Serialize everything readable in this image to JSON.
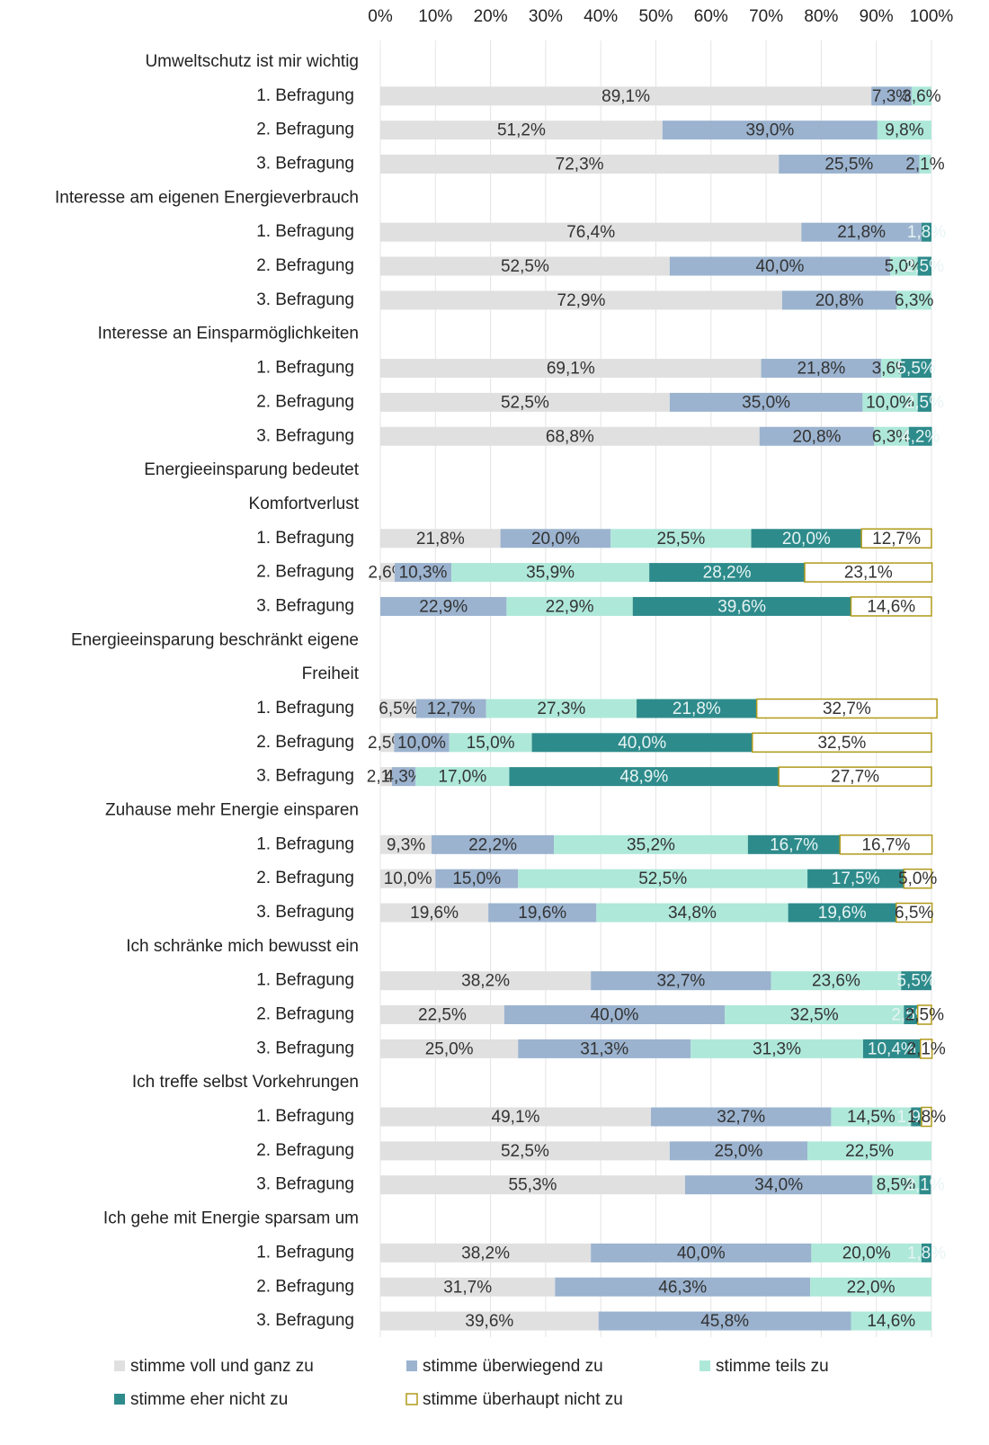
{
  "chart_data": {
    "type": "stacked_barh",
    "categories": [
      "Umweltschutz ist mir wichtig",
      "1. Befragung",
      "2. Befragung",
      "3. Befragung",
      "Interesse am eigenen Energieverbrauch",
      "1. Befragung",
      "2. Befragung",
      "3. Befragung",
      "Interesse an Einsparmöglichkeiten",
      "1. Befragung",
      "2. Befragung",
      "3. Befragung",
      "Energieeinsparung bedeutet",
      "Komfortverlust",
      "1. Befragung",
      "2. Befragung",
      "3. Befragung",
      "Energieeinsparung beschränkt eigene",
      "Freiheit",
      "1. Befragung",
      "2. Befragung",
      "3. Befragung",
      "Zuhause mehr Energie einsparen",
      "1. Befragung",
      "2. Befragung",
      "3. Befragung",
      "Ich schränke mich bewusst ein",
      "1. Befragung",
      "2. Befragung",
      "3. Befragung",
      "Ich treffe selbst Vorkehrungen",
      "1. Befragung",
      "2. Befragung",
      "3. Befragung",
      "Ich gehe mit Energie sparsam um",
      "1. Befragung",
      "2. Befragung",
      "3. Befragung"
    ],
    "series": [
      {
        "name": "stimme voll und ganz zu",
        "color": "#e0e0e0",
        "label_color": "#333333",
        "values": [
          null,
          89.1,
          51.2,
          72.3,
          null,
          76.4,
          52.5,
          72.9,
          null,
          69.1,
          52.5,
          68.8,
          null,
          null,
          21.8,
          2.6,
          null,
          null,
          null,
          6.5,
          2.5,
          2.1,
          null,
          9.3,
          10.0,
          19.6,
          null,
          38.2,
          22.5,
          25.0,
          null,
          49.1,
          52.5,
          55.3,
          null,
          38.2,
          31.7,
          39.6
        ],
        "value_labels": [
          null,
          "89,1%",
          "51,2%",
          "72,3%",
          null,
          "76,4%",
          "52,5%",
          "72,9%",
          null,
          "69,1%",
          "52,5%",
          "68,8%",
          null,
          null,
          "21,8%",
          "2,6%",
          null,
          null,
          null,
          "6,5%",
          "2,5%",
          "2,1%",
          null,
          "9,3%",
          "10,0%",
          "19,6%",
          null,
          "38,2%",
          "22,5%",
          "25,0%",
          null,
          "49,1%",
          "52,5%",
          "55,3%",
          null,
          "38,2%",
          "31,7%",
          "39,6%"
        ]
      },
      {
        "name": "stimme überwiegend zu",
        "color": "#9bb3cf",
        "label_color": "#333333",
        "values": [
          null,
          7.3,
          39.0,
          25.5,
          null,
          21.8,
          40.0,
          20.8,
          null,
          21.8,
          35.0,
          20.8,
          null,
          null,
          20.0,
          10.3,
          22.9,
          null,
          null,
          12.7,
          10.0,
          4.3,
          null,
          22.2,
          15.0,
          19.6,
          null,
          32.7,
          40.0,
          31.3,
          null,
          32.7,
          25.0,
          34.0,
          null,
          40.0,
          46.3,
          45.8
        ],
        "value_labels": [
          null,
          "7,3%",
          "39,0%",
          "25,5%",
          null,
          "21,8%",
          "40,0%",
          "20,8%",
          null,
          "21,8%",
          "35,0%",
          "20,8%",
          null,
          null,
          "20,0%",
          "10,3%",
          "22,9%",
          null,
          null,
          "12,7%",
          "10,0%",
          "4,3%",
          null,
          "22,2%",
          "15,0%",
          "19,6%",
          null,
          "32,7%",
          "40,0%",
          "31,3%",
          null,
          "32,7%",
          "25,0%",
          "34,0%",
          null,
          "40,0%",
          "46,3%",
          "45,8%"
        ]
      },
      {
        "name": "stimme teils zu",
        "color": "#aee8d9",
        "label_color": "#333333",
        "values": [
          null,
          3.6,
          9.8,
          2.1,
          null,
          null,
          5.0,
          6.3,
          null,
          3.6,
          10.0,
          6.3,
          null,
          null,
          25.5,
          35.9,
          22.9,
          null,
          null,
          27.3,
          15.0,
          17.0,
          null,
          35.2,
          52.5,
          34.8,
          null,
          23.6,
          32.5,
          31.3,
          null,
          14.5,
          22.5,
          8.5,
          null,
          20.0,
          22.0,
          14.6
        ],
        "value_labels": [
          null,
          "3,6%",
          "9,8%",
          "2,1%",
          null,
          null,
          "5,0%",
          "6,3%",
          null,
          "3,6%",
          "10,0%",
          "6,3%",
          null,
          null,
          "25,5%",
          "35,9%",
          "22,9%",
          null,
          null,
          "27,3%",
          "15,0%",
          "17,0%",
          null,
          "35,2%",
          "52,5%",
          "34,8%",
          null,
          "23,6%",
          "32,5%",
          "31,3%",
          null,
          "14,5%",
          "22,5%",
          "8,5%",
          null,
          "20,0%",
          "22,0%",
          "14,6%"
        ]
      },
      {
        "name": "stimme eher nicht zu",
        "color": "#2e8b8b",
        "label_color": "#e8f4f4",
        "values": [
          null,
          null,
          null,
          null,
          null,
          1.8,
          2.5,
          null,
          null,
          5.5,
          2.5,
          4.2,
          null,
          null,
          20.0,
          28.2,
          39.6,
          null,
          null,
          21.8,
          40.0,
          48.9,
          null,
          16.7,
          17.5,
          19.6,
          null,
          5.5,
          2.5,
          10.4,
          null,
          1.9,
          null,
          2.1,
          null,
          1.8,
          null,
          null
        ],
        "value_labels": [
          null,
          null,
          null,
          null,
          null,
          "1,8%",
          "2,5%",
          null,
          null,
          "5,5%",
          "2,5%",
          "4,2%",
          null,
          null,
          "20,0%",
          "28,2%",
          "39,6%",
          null,
          null,
          "21,8%",
          "40,0%",
          "48,9%",
          null,
          "16,7%",
          "17,5%",
          "19,6%",
          null,
          "5,5%",
          "2,5%",
          "10,4%",
          null,
          "1,9%",
          null,
          "2,1%",
          null,
          "1,8%",
          null,
          null
        ]
      },
      {
        "name": "stimme überhaupt nicht zu",
        "color": "#ffffff",
        "border": "#b09a1a",
        "label_color": "#333333",
        "values": [
          null,
          null,
          null,
          null,
          null,
          null,
          null,
          null,
          null,
          null,
          null,
          null,
          null,
          null,
          12.7,
          23.1,
          14.6,
          null,
          null,
          32.7,
          32.5,
          27.7,
          null,
          16.7,
          5.0,
          6.5,
          null,
          null,
          2.5,
          2.1,
          null,
          1.8,
          null,
          null,
          null,
          null,
          null,
          null
        ],
        "value_labels": [
          null,
          null,
          null,
          null,
          null,
          null,
          null,
          null,
          null,
          null,
          null,
          null,
          null,
          null,
          "12,7%",
          "23,1%",
          "14,6%",
          null,
          null,
          "32,7%",
          "32,5%",
          "27,7%",
          null,
          "16,7%",
          "5,0%",
          "6,5%",
          null,
          null,
          "2,5%",
          "2,1%",
          null,
          "1,8%",
          null,
          null,
          null,
          null,
          null,
          null
        ]
      }
    ],
    "xlim": [
      0,
      100
    ],
    "xticks": [
      {
        "value": 0,
        "label": "0%"
      },
      {
        "value": 10,
        "label": "10%"
      },
      {
        "value": 20,
        "label": "20%"
      },
      {
        "value": 30,
        "label": "30%"
      },
      {
        "value": 40,
        "label": "40%"
      },
      {
        "value": 50,
        "label": "50%"
      },
      {
        "value": 60,
        "label": "60%"
      },
      {
        "value": 70,
        "label": "70%"
      },
      {
        "value": 80,
        "label": "80%"
      },
      {
        "value": 90,
        "label": "90%"
      },
      {
        "value": 100,
        "label": "100%"
      }
    ],
    "grid": true,
    "legend": "bottom"
  }
}
